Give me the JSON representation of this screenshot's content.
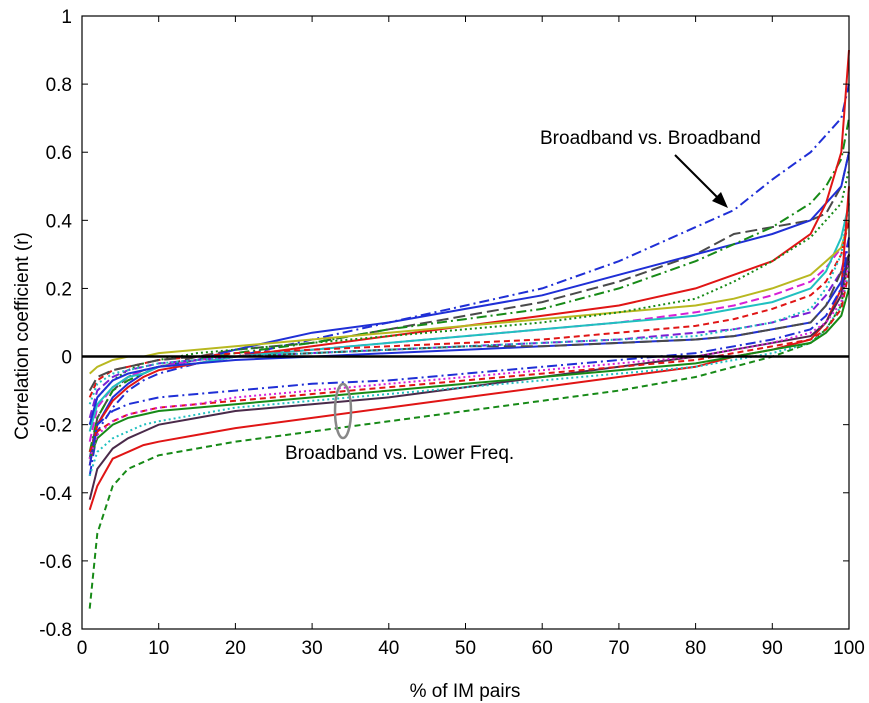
{
  "chart_data": {
    "type": "line",
    "title": "",
    "xlabel": "% of IM pairs",
    "ylabel": "Correlation coefficient (r)",
    "xlim": [
      0,
      100
    ],
    "ylim": [
      -0.8,
      1
    ],
    "x_ticks": [
      "0",
      "10",
      "20",
      "30",
      "40",
      "50",
      "60",
      "70",
      "80",
      "90",
      "100"
    ],
    "y_ticks": [
      "-0.8",
      "-0.6",
      "-0.4",
      "-0.2",
      "0",
      "0.2",
      "0.4",
      "0.6",
      "0.8",
      "1"
    ],
    "grid": false,
    "reference_line_y": 0,
    "annotations": {
      "upper": "Broadband vs. Broadband",
      "lower": "Broadband vs. Lower Freq."
    },
    "x": [
      1,
      2,
      4,
      6,
      8,
      10,
      15,
      20,
      30,
      40,
      50,
      60,
      70,
      80,
      85,
      90,
      95,
      97,
      99,
      100
    ],
    "series": [
      {
        "color": "#1f2fd6",
        "dash": "10 4 2 4",
        "values": [
          -0.35,
          -0.22,
          -0.15,
          -0.1,
          -0.07,
          -0.05,
          -0.02,
          0.0,
          0.05,
          0.1,
          0.15,
          0.2,
          0.28,
          0.38,
          0.43,
          0.52,
          0.6,
          0.65,
          0.7,
          0.8
        ]
      },
      {
        "color": "#4a4a4a",
        "dash": "12 5",
        "values": [
          -0.3,
          -0.18,
          -0.1,
          -0.06,
          -0.04,
          -0.03,
          0.0,
          0.02,
          0.04,
          0.08,
          0.12,
          0.16,
          0.22,
          0.3,
          0.36,
          0.38,
          0.4,
          0.42,
          0.5,
          0.6
        ]
      },
      {
        "color": "#1f2fd6",
        "dash": "",
        "values": [
          -0.3,
          -0.2,
          -0.12,
          -0.08,
          -0.05,
          -0.03,
          -0.01,
          0.02,
          0.07,
          0.1,
          0.14,
          0.18,
          0.24,
          0.3,
          0.33,
          0.36,
          0.4,
          0.45,
          0.5,
          0.6
        ]
      },
      {
        "color": "#178a17",
        "dash": "10 4 2 4",
        "values": [
          -0.28,
          -0.18,
          -0.1,
          -0.07,
          -0.05,
          -0.03,
          -0.01,
          0.01,
          0.04,
          0.08,
          0.11,
          0.14,
          0.2,
          0.28,
          0.33,
          0.38,
          0.45,
          0.5,
          0.58,
          0.7
        ]
      },
      {
        "color": "#e01515",
        "dash": "",
        "values": [
          -0.32,
          -0.2,
          -0.13,
          -0.09,
          -0.06,
          -0.04,
          -0.02,
          0.0,
          0.03,
          0.06,
          0.09,
          0.12,
          0.15,
          0.2,
          0.24,
          0.28,
          0.36,
          0.45,
          0.6,
          0.9
        ]
      },
      {
        "color": "#d61fd6",
        "dash": "8 4",
        "values": [
          -0.25,
          -0.15,
          -0.09,
          -0.06,
          -0.04,
          -0.03,
          -0.01,
          0.0,
          0.02,
          0.04,
          0.06,
          0.08,
          0.1,
          0.13,
          0.15,
          0.18,
          0.22,
          0.26,
          0.32,
          0.4
        ]
      },
      {
        "color": "#20c0c0",
        "dash": "",
        "values": [
          -0.22,
          -0.14,
          -0.09,
          -0.06,
          -0.05,
          -0.03,
          -0.02,
          0.0,
          0.02,
          0.04,
          0.06,
          0.08,
          0.1,
          0.12,
          0.14,
          0.16,
          0.2,
          0.25,
          0.35,
          0.45
        ]
      },
      {
        "color": "#b8b820",
        "dash": "",
        "values": [
          -0.05,
          -0.03,
          -0.01,
          0.0,
          0.0,
          0.01,
          0.02,
          0.03,
          0.05,
          0.07,
          0.09,
          0.11,
          0.13,
          0.15,
          0.17,
          0.2,
          0.24,
          0.28,
          0.32,
          0.4
        ]
      },
      {
        "color": "#178a17",
        "dash": "2 3",
        "values": [
          -0.2,
          -0.12,
          -0.07,
          -0.04,
          -0.02,
          -0.01,
          0.01,
          0.02,
          0.04,
          0.06,
          0.08,
          0.1,
          0.13,
          0.17,
          0.22,
          0.28,
          0.35,
          0.4,
          0.45,
          0.55
        ]
      },
      {
        "color": "#7a1fd6",
        "dash": "8 4",
        "values": [
          -0.18,
          -0.1,
          -0.06,
          -0.04,
          -0.03,
          -0.02,
          -0.01,
          0.0,
          0.01,
          0.02,
          0.03,
          0.04,
          0.05,
          0.07,
          0.08,
          0.1,
          0.13,
          0.18,
          0.25,
          0.35
        ]
      },
      {
        "color": "#1f2fd6",
        "dash": "",
        "values": [
          -0.2,
          -0.12,
          -0.07,
          -0.05,
          -0.04,
          -0.03,
          -0.02,
          -0.01,
          0.0,
          0.01,
          0.02,
          0.03,
          0.04,
          0.05,
          0.06,
          0.08,
          0.1,
          0.15,
          0.22,
          0.3
        ]
      },
      {
        "color": "#e01515",
        "dash": "6 4",
        "values": [
          -0.12,
          -0.07,
          -0.04,
          -0.03,
          -0.02,
          -0.01,
          0.0,
          0.01,
          0.02,
          0.03,
          0.04,
          0.05,
          0.07,
          0.09,
          0.11,
          0.14,
          0.18,
          0.22,
          0.3,
          0.4
        ]
      },
      {
        "color": "#4a4a4a",
        "dash": "12 5",
        "values": [
          -0.1,
          -0.06,
          -0.04,
          -0.03,
          -0.02,
          -0.01,
          0.0,
          0.0,
          0.01,
          0.02,
          0.03,
          0.03,
          0.04,
          0.05,
          0.06,
          0.08,
          0.1,
          0.15,
          0.25,
          0.3
        ]
      },
      {
        "color": "#20c0c0",
        "dash": "2 3",
        "values": [
          -0.14,
          -0.08,
          -0.05,
          -0.04,
          -0.03,
          -0.02,
          -0.01,
          0.0,
          0.01,
          0.02,
          0.03,
          0.04,
          0.05,
          0.06,
          0.08,
          0.1,
          0.14,
          0.2,
          0.3,
          0.45
        ]
      },
      {
        "color": "#178a17",
        "dash": "6 4",
        "values": [
          -0.74,
          -0.52,
          -0.38,
          -0.33,
          -0.31,
          -0.29,
          -0.27,
          -0.25,
          -0.22,
          -0.19,
          -0.16,
          -0.13,
          -0.1,
          -0.06,
          -0.03,
          0.0,
          0.04,
          0.08,
          0.15,
          0.3
        ]
      },
      {
        "color": "#e01515",
        "dash": "",
        "values": [
          -0.45,
          -0.38,
          -0.3,
          -0.28,
          -0.26,
          -0.25,
          -0.23,
          -0.21,
          -0.18,
          -0.15,
          -0.12,
          -0.09,
          -0.06,
          -0.03,
          0.0,
          0.02,
          0.05,
          0.1,
          0.2,
          0.5
        ]
      },
      {
        "color": "#4a2a4a",
        "dash": "",
        "values": [
          -0.42,
          -0.33,
          -0.27,
          -0.24,
          -0.22,
          -0.2,
          -0.18,
          -0.16,
          -0.14,
          -0.12,
          -0.09,
          -0.06,
          -0.03,
          0.0,
          0.02,
          0.04,
          0.06,
          0.1,
          0.18,
          0.3
        ]
      },
      {
        "color": "#20c0c0",
        "dash": "2 3",
        "values": [
          -0.35,
          -0.28,
          -0.24,
          -0.22,
          -0.2,
          -0.19,
          -0.17,
          -0.15,
          -0.13,
          -0.11,
          -0.09,
          -0.07,
          -0.05,
          -0.03,
          -0.01,
          0.01,
          0.04,
          0.08,
          0.15,
          0.25
        ]
      },
      {
        "color": "#178a17",
        "dash": "",
        "values": [
          -0.3,
          -0.24,
          -0.2,
          -0.18,
          -0.17,
          -0.16,
          -0.15,
          -0.14,
          -0.12,
          -0.1,
          -0.08,
          -0.06,
          -0.04,
          -0.02,
          0.0,
          0.02,
          0.04,
          0.07,
          0.12,
          0.2
        ]
      },
      {
        "color": "#e01515",
        "dash": "6 4",
        "values": [
          -0.28,
          -0.22,
          -0.19,
          -0.17,
          -0.16,
          -0.15,
          -0.14,
          -0.13,
          -0.11,
          -0.09,
          -0.07,
          -0.05,
          -0.03,
          -0.01,
          0.01,
          0.03,
          0.05,
          0.08,
          0.14,
          0.25
        ]
      },
      {
        "color": "#d61fd6",
        "dash": "2 3",
        "values": [
          -0.3,
          -0.23,
          -0.19,
          -0.17,
          -0.16,
          -0.15,
          -0.14,
          -0.12,
          -0.1,
          -0.08,
          -0.06,
          -0.04,
          -0.02,
          0.0,
          0.02,
          0.04,
          0.07,
          0.1,
          0.16,
          0.28
        ]
      },
      {
        "color": "#1f2fd6",
        "dash": "10 4 2 4",
        "values": [
          -0.32,
          -0.2,
          -0.16,
          -0.14,
          -0.13,
          -0.12,
          -0.11,
          -0.1,
          -0.08,
          -0.07,
          -0.05,
          -0.03,
          -0.01,
          0.01,
          0.03,
          0.05,
          0.08,
          0.12,
          0.2,
          0.35
        ]
      }
    ]
  }
}
